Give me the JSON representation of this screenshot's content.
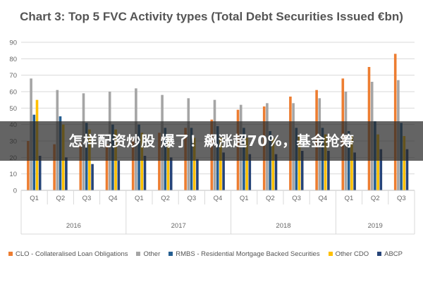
{
  "overlay_text": "怎样配资炒股 爆了！飙涨超70%，基金抢筹",
  "chart_data": {
    "type": "bar",
    "title": "Chart 3: Top 5 FVC Activity types (Total Debt Securities Issued €bn)",
    "xlabel": "",
    "ylabel": "",
    "ylim": [
      0,
      90
    ],
    "yticks": [
      0,
      10,
      20,
      30,
      40,
      50,
      60,
      70,
      80,
      90
    ],
    "grid": true,
    "legend_position": "bottom",
    "categories": [
      "Q1",
      "Q2",
      "Q3",
      "Q4",
      "Q1",
      "Q2",
      "Q3",
      "Q4",
      "Q1",
      "Q2",
      "Q3",
      "Q4",
      "Q1",
      "Q2",
      "Q3"
    ],
    "groups": [
      {
        "label": "2016",
        "count": 4
      },
      {
        "label": "2017",
        "count": 4
      },
      {
        "label": "2018",
        "count": 4
      },
      {
        "label": "2019",
        "count": 3
      }
    ],
    "series": [
      {
        "name": "CLO - Collateralised Loan Obligations",
        "color": "#ed7d31",
        "values": [
          30,
          28,
          29,
          28,
          32,
          35,
          38,
          43,
          49,
          51,
          57,
          61,
          68,
          75,
          83
        ]
      },
      {
        "name": "Other",
        "color": "#a5a5a5",
        "values": [
          68,
          61,
          59,
          60,
          62,
          58,
          56,
          55,
          52,
          53,
          53,
          56,
          60,
          66,
          67
        ]
      },
      {
        "name": "RMBS - Residential Mortgage Backed Securities",
        "color": "#255e91",
        "values": [
          46,
          45,
          41,
          40,
          40,
          38,
          38,
          39,
          38,
          36,
          38,
          38,
          36,
          42,
          41
        ]
      },
      {
        "name": "Other CDO",
        "color": "#ffc000",
        "values": [
          55,
          40,
          37,
          37,
          35,
          32,
          32,
          32,
          32,
          32,
          33,
          34,
          33,
          34,
          33
        ]
      },
      {
        "name": "ABCP",
        "color": "#264478",
        "values": [
          21,
          20,
          16,
          18,
          21,
          20,
          19,
          23,
          22,
          22,
          24,
          24,
          23,
          25,
          25
        ]
      }
    ]
  }
}
